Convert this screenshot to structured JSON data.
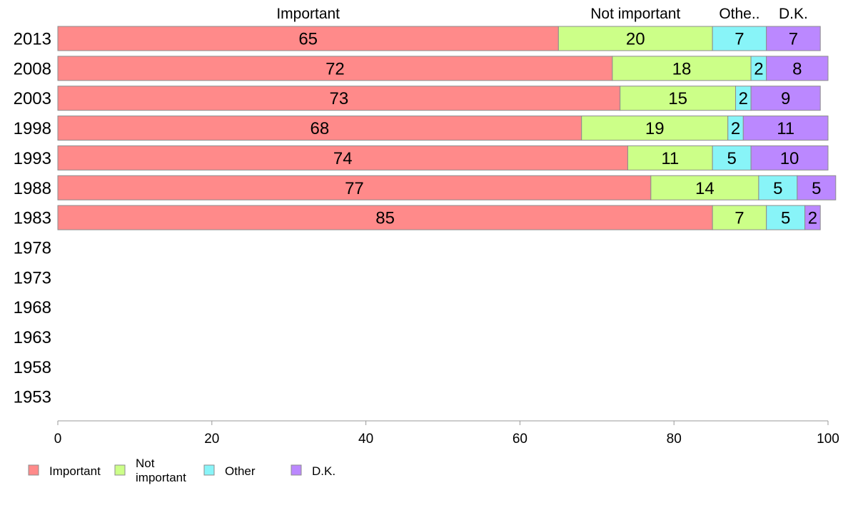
{
  "chart_data": {
    "type": "bar",
    "orientation": "horizontal",
    "stacked": true,
    "categories": [
      "2013",
      "2008",
      "2003",
      "1998",
      "1993",
      "1988",
      "1983",
      "1978",
      "1973",
      "1968",
      "1963",
      "1958",
      "1953"
    ],
    "series": [
      {
        "name": "Important",
        "color": "#ff8a8a",
        "values": [
          65,
          72,
          73,
          68,
          74,
          77,
          85,
          null,
          null,
          null,
          null,
          null,
          null
        ]
      },
      {
        "name": "Not important",
        "color": "#ccff88",
        "values": [
          20,
          18,
          15,
          19,
          11,
          14,
          7,
          null,
          null,
          null,
          null,
          null,
          null
        ]
      },
      {
        "name": "Other",
        "color": "#88f4f8",
        "values": [
          7,
          2,
          2,
          2,
          5,
          5,
          5,
          null,
          null,
          null,
          null,
          null,
          null
        ]
      },
      {
        "name": "D.K.",
        "color": "#bb88ff",
        "values": [
          7,
          8,
          9,
          11,
          10,
          5,
          2,
          null,
          null,
          null,
          null,
          null,
          null
        ]
      }
    ],
    "column_headers": [
      "Important",
      "Not important",
      "Othe..",
      "D.K."
    ],
    "legend_labels": [
      "Important",
      "Not\nimportant",
      "Other",
      "D.K."
    ],
    "xlim": [
      0,
      100
    ],
    "xticks": [
      0,
      20,
      40,
      60,
      80,
      100
    ],
    "grid": false,
    "legend_position": "bottom-left"
  }
}
